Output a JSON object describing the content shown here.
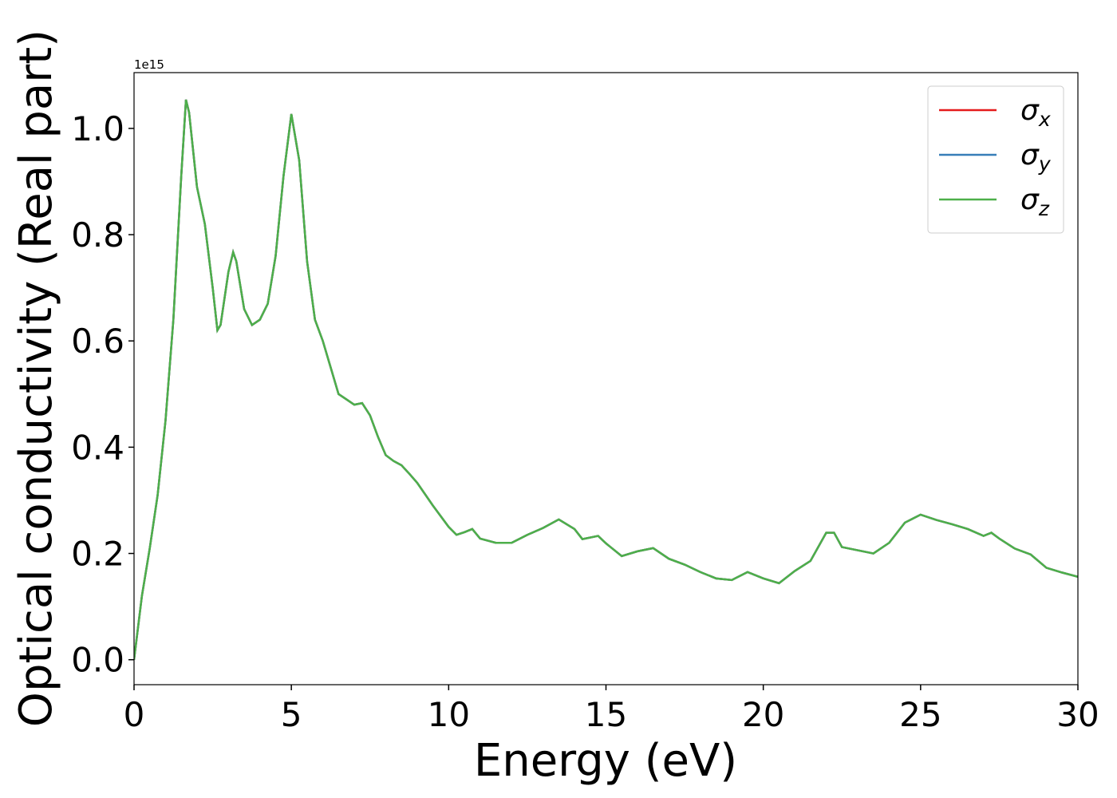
{
  "chart_data": {
    "type": "line",
    "xlabel": "Energy (eV)",
    "ylabel": "Optical conductivity (Real part)",
    "y_offset_label": "1e15",
    "x": [
      0,
      0.25,
      0.5,
      0.75,
      1.0,
      1.25,
      1.5,
      1.65,
      1.75,
      2.0,
      2.25,
      2.5,
      2.65,
      2.75,
      3.0,
      3.15,
      3.25,
      3.5,
      3.75,
      4.0,
      4.25,
      4.5,
      4.75,
      5.0,
      5.25,
      5.5,
      5.75,
      6.0,
      6.25,
      6.5,
      6.75,
      7.0,
      7.25,
      7.5,
      7.75,
      8.0,
      8.25,
      8.5,
      8.75,
      9.0,
      9.5,
      10.0,
      10.25,
      10.5,
      10.75,
      11.0,
      11.5,
      12.0,
      12.5,
      13.0,
      13.5,
      14.0,
      14.25,
      14.75,
      15.0,
      15.5,
      16.0,
      16.5,
      17.0,
      17.5,
      18.0,
      18.5,
      19.0,
      19.5,
      20.0,
      20.5,
      21.0,
      21.5,
      22.0,
      22.25,
      22.5,
      23.0,
      23.5,
      24.0,
      24.5,
      25.0,
      25.5,
      26.0,
      26.5,
      27.0,
      27.25,
      27.5,
      28.0,
      28.5,
      29.0,
      29.5,
      30.0
    ],
    "series": [
      {
        "name": "σx",
        "color": "#e41a1c",
        "values": [
          0.0,
          0.12,
          0.21,
          0.31,
          0.45,
          0.64,
          0.91,
          1.054,
          1.03,
          0.89,
          0.82,
          0.7,
          0.62,
          0.63,
          0.73,
          0.767,
          0.75,
          0.66,
          0.63,
          0.64,
          0.67,
          0.76,
          0.91,
          1.027,
          0.94,
          0.75,
          0.64,
          0.6,
          0.55,
          0.5,
          0.49,
          0.48,
          0.483,
          0.46,
          0.42,
          0.385,
          0.374,
          0.366,
          0.35,
          0.333,
          0.29,
          0.25,
          0.235,
          0.24,
          0.246,
          0.228,
          0.22,
          0.22,
          0.235,
          0.248,
          0.264,
          0.246,
          0.227,
          0.233,
          0.219,
          0.195,
          0.204,
          0.21,
          0.19,
          0.179,
          0.165,
          0.153,
          0.15,
          0.165,
          0.153,
          0.144,
          0.167,
          0.186,
          0.239,
          0.239,
          0.212,
          0.206,
          0.2,
          0.22,
          0.258,
          0.273,
          0.263,
          0.255,
          0.246,
          0.233,
          0.239,
          0.228,
          0.209,
          0.198,
          0.173,
          0.164,
          0.156
        ]
      },
      {
        "name": "σy",
        "color": "#377eb8",
        "values": [
          0.0,
          0.12,
          0.21,
          0.31,
          0.45,
          0.64,
          0.91,
          1.054,
          1.03,
          0.89,
          0.82,
          0.7,
          0.62,
          0.63,
          0.73,
          0.767,
          0.75,
          0.66,
          0.63,
          0.64,
          0.67,
          0.76,
          0.91,
          1.027,
          0.94,
          0.75,
          0.64,
          0.6,
          0.55,
          0.5,
          0.49,
          0.48,
          0.483,
          0.46,
          0.42,
          0.385,
          0.374,
          0.366,
          0.35,
          0.333,
          0.29,
          0.25,
          0.235,
          0.24,
          0.246,
          0.228,
          0.22,
          0.22,
          0.235,
          0.248,
          0.264,
          0.246,
          0.227,
          0.233,
          0.219,
          0.195,
          0.204,
          0.21,
          0.19,
          0.179,
          0.165,
          0.153,
          0.15,
          0.165,
          0.153,
          0.144,
          0.167,
          0.186,
          0.239,
          0.239,
          0.212,
          0.206,
          0.2,
          0.22,
          0.258,
          0.273,
          0.263,
          0.255,
          0.246,
          0.233,
          0.239,
          0.228,
          0.209,
          0.198,
          0.173,
          0.164,
          0.156
        ]
      },
      {
        "name": "σz",
        "color": "#4daf4a",
        "values": [
          0.0,
          0.12,
          0.21,
          0.31,
          0.45,
          0.64,
          0.91,
          1.054,
          1.03,
          0.89,
          0.82,
          0.7,
          0.62,
          0.63,
          0.73,
          0.767,
          0.75,
          0.66,
          0.63,
          0.64,
          0.67,
          0.76,
          0.91,
          1.027,
          0.94,
          0.75,
          0.64,
          0.6,
          0.55,
          0.5,
          0.49,
          0.48,
          0.483,
          0.46,
          0.42,
          0.385,
          0.374,
          0.366,
          0.35,
          0.333,
          0.29,
          0.25,
          0.235,
          0.24,
          0.246,
          0.228,
          0.22,
          0.22,
          0.235,
          0.248,
          0.264,
          0.246,
          0.227,
          0.233,
          0.219,
          0.195,
          0.204,
          0.21,
          0.19,
          0.179,
          0.165,
          0.153,
          0.15,
          0.165,
          0.153,
          0.144,
          0.167,
          0.186,
          0.239,
          0.239,
          0.212,
          0.206,
          0.2,
          0.22,
          0.258,
          0.273,
          0.263,
          0.255,
          0.246,
          0.233,
          0.239,
          0.228,
          0.209,
          0.198,
          0.173,
          0.164,
          0.156
        ]
      }
    ],
    "xlim": [
      0,
      30
    ],
    "xticks": [
      0,
      5,
      10,
      15,
      20,
      25,
      30
    ],
    "ylim": [
      -0.047,
      1.105
    ],
    "yticks": [
      {
        "value": 0,
        "label": "0.0"
      },
      0.2,
      0.4,
      0.6,
      0.8,
      {
        "value": 1,
        "label": "1.0"
      }
    ],
    "grid": false,
    "legend": "upper right"
  }
}
